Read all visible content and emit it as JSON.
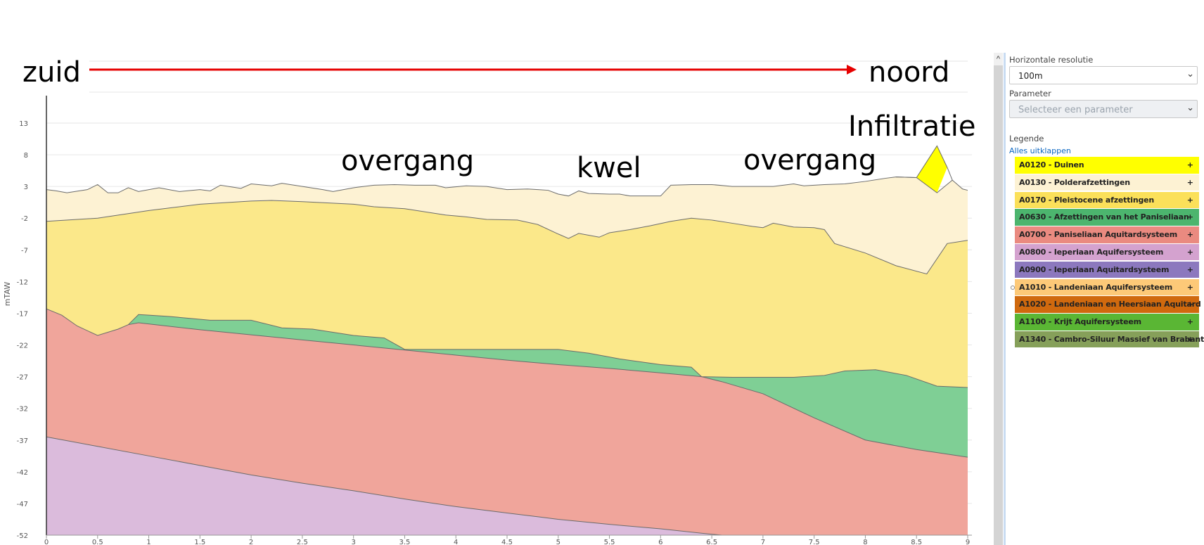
{
  "annotations": {
    "south": "zuid",
    "north": "noord",
    "infiltration": "Infiltratie",
    "transition_left": "overgang",
    "seepage": "kwel",
    "transition_right": "overgang"
  },
  "panel": {
    "resolution_label": "Horizontale resolutie",
    "resolution_value": "100m",
    "parameter_label": "Parameter",
    "parameter_placeholder": "Selecteer een parameter",
    "legend_label": "Legende",
    "expand_all": "Alles uitklappen",
    "legend_items": [
      {
        "label": "A0120 - Duinen",
        "color": "#ffff00"
      },
      {
        "label": "A0130 - Polderafzettingen",
        "color": "#fdf2d3"
      },
      {
        "label": "A0170 - Pleistocene afzettingen",
        "color": "#fbe05a"
      },
      {
        "label": "A0630 - Afzettingen van het Paniseliaan",
        "color": "#4cb56e"
      },
      {
        "label": "A0700 - Paniseliaan Aquitardsysteem",
        "color": "#ea8a80"
      },
      {
        "label": "A0800 - Ieperiaan Aquifersysteem",
        "color": "#d4a2cf"
      },
      {
        "label": "A0900 - Ieperiaan Aquitardsysteem",
        "color": "#8c78be"
      },
      {
        "label": "A1010 - Landeniaan Aquifersysteem",
        "color": "#fdc978"
      },
      {
        "label": "A1020 - Landeniaan en Heersiaan Aquitard",
        "color": "#d0690e"
      },
      {
        "label": "A1100 - Krijt Aquifersysteem",
        "color": "#5ab634"
      },
      {
        "label": "A1340 - Cambro-Siluur Massief van Brabant",
        "color": "#86a05a"
      }
    ],
    "plus": "+"
  },
  "scroll_up": "^",
  "chart_data": {
    "type": "area",
    "ylabel": "mTAW",
    "xlim": [
      0,
      9
    ],
    "ylim": [
      -52,
      13
    ],
    "xticks": [
      0,
      0.5,
      1,
      1.5,
      2,
      2.5,
      3,
      3.5,
      4,
      4.5,
      5,
      5.5,
      6,
      6.5,
      7,
      7.5,
      8,
      8.5,
      9
    ],
    "yticks": [
      13,
      8,
      3,
      -2,
      -7,
      -12,
      -17,
      -22,
      -27,
      -32,
      -37,
      -42,
      -47,
      -52
    ],
    "grid": true,
    "layers": [
      {
        "name": "A0120 - Duinen",
        "color": "#ffff00",
        "top": [
          [
            8.3,
            4.5
          ],
          [
            8.5,
            4.4
          ],
          [
            8.7,
            9.4
          ],
          [
            8.8,
            6.0
          ],
          [
            8.85,
            4.0
          ]
        ],
        "bottom": [
          [
            8.3,
            4.5
          ],
          [
            8.5,
            4.0
          ],
          [
            8.7,
            2.0
          ],
          [
            8.8,
            6.0
          ],
          [
            8.85,
            4.0
          ]
        ]
      },
      {
        "name": "A0130 - Polderafzettingen",
        "color": "#fdf2d3",
        "top": [
          [
            0,
            2.5
          ],
          [
            0.1,
            2.3
          ],
          [
            0.2,
            2.0
          ],
          [
            0.4,
            2.5
          ],
          [
            0.5,
            3.3
          ],
          [
            0.6,
            2.0
          ],
          [
            0.7,
            2.0
          ],
          [
            0.8,
            2.8
          ],
          [
            0.9,
            2.2
          ],
          [
            1.1,
            2.8
          ],
          [
            1.3,
            2.2
          ],
          [
            1.5,
            2.5
          ],
          [
            1.6,
            2.3
          ],
          [
            1.7,
            3.2
          ],
          [
            1.9,
            2.7
          ],
          [
            2.0,
            3.4
          ],
          [
            2.2,
            3.1
          ],
          [
            2.3,
            3.5
          ],
          [
            2.5,
            3.0
          ],
          [
            2.7,
            2.5
          ],
          [
            2.8,
            2.2
          ],
          [
            3.0,
            2.8
          ],
          [
            3.2,
            3.2
          ],
          [
            3.4,
            3.3
          ],
          [
            3.6,
            3.2
          ],
          [
            3.8,
            3.2
          ],
          [
            3.9,
            2.8
          ],
          [
            4.1,
            3.1
          ],
          [
            4.3,
            3.0
          ],
          [
            4.5,
            2.5
          ],
          [
            4.7,
            2.6
          ],
          [
            4.8,
            2.5
          ],
          [
            4.9,
            2.4
          ],
          [
            5.0,
            1.8
          ],
          [
            5.1,
            1.5
          ],
          [
            5.2,
            2.3
          ],
          [
            5.3,
            1.9
          ],
          [
            5.5,
            1.8
          ],
          [
            5.6,
            1.8
          ],
          [
            5.7,
            1.5
          ],
          [
            5.8,
            1.5
          ],
          [
            6.0,
            1.5
          ],
          [
            6.1,
            3.2
          ],
          [
            6.3,
            3.3
          ],
          [
            6.5,
            3.3
          ],
          [
            6.7,
            3.0
          ],
          [
            6.9,
            3.0
          ],
          [
            7.1,
            3.0
          ],
          [
            7.3,
            3.4
          ],
          [
            7.4,
            3.1
          ],
          [
            7.6,
            3.3
          ],
          [
            7.8,
            3.4
          ],
          [
            8.0,
            3.8
          ],
          [
            8.2,
            4.3
          ],
          [
            8.3,
            4.5
          ],
          [
            8.5,
            4.4
          ],
          [
            8.7,
            2.0
          ],
          [
            8.85,
            4.0
          ],
          [
            8.95,
            2.6
          ],
          [
            9.0,
            2.4
          ]
        ],
        "bottom": [
          [
            0,
            -2.5
          ],
          [
            0.5,
            -2.0
          ],
          [
            1.0,
            -0.8
          ],
          [
            1.5,
            0.2
          ],
          [
            2.0,
            0.7
          ],
          [
            2.2,
            0.8
          ],
          [
            2.5,
            0.6
          ],
          [
            3.0,
            0.2
          ],
          [
            3.2,
            -0.2
          ],
          [
            3.5,
            -0.5
          ],
          [
            3.9,
            -1.5
          ],
          [
            4.1,
            -1.8
          ],
          [
            4.3,
            -2.2
          ],
          [
            4.6,
            -2.3
          ],
          [
            4.8,
            -3.0
          ],
          [
            5.0,
            -4.5
          ],
          [
            5.1,
            -5.2
          ],
          [
            5.2,
            -4.4
          ],
          [
            5.4,
            -5.0
          ],
          [
            5.5,
            -4.3
          ],
          [
            5.7,
            -3.8
          ],
          [
            5.9,
            -3.2
          ],
          [
            6.1,
            -2.5
          ],
          [
            6.3,
            -2.0
          ],
          [
            6.5,
            -2.3
          ],
          [
            6.7,
            -2.8
          ],
          [
            6.9,
            -3.3
          ],
          [
            7.0,
            -3.5
          ],
          [
            7.1,
            -2.8
          ],
          [
            7.3,
            -3.4
          ],
          [
            7.5,
            -3.5
          ],
          [
            7.6,
            -3.8
          ],
          [
            7.7,
            -6.0
          ],
          [
            8.0,
            -7.5
          ],
          [
            8.3,
            -9.5
          ],
          [
            8.6,
            -10.8
          ],
          [
            8.8,
            -6.0
          ],
          [
            9.0,
            -5.5
          ]
        ]
      },
      {
        "name": "A0170 - Pleistocene afzettingen",
        "color": "#fbe88a",
        "top": [
          [
            0,
            -2.5
          ],
          [
            0.5,
            -2.0
          ],
          [
            1.0,
            -0.8
          ],
          [
            1.5,
            0.2
          ],
          [
            2.0,
            0.7
          ],
          [
            2.2,
            0.8
          ],
          [
            2.5,
            0.6
          ],
          [
            3.0,
            0.2
          ],
          [
            3.2,
            -0.2
          ],
          [
            3.5,
            -0.5
          ],
          [
            3.9,
            -1.5
          ],
          [
            4.1,
            -1.8
          ],
          [
            4.3,
            -2.2
          ],
          [
            4.6,
            -2.3
          ],
          [
            4.8,
            -3.0
          ],
          [
            5.0,
            -4.5
          ],
          [
            5.1,
            -5.2
          ],
          [
            5.2,
            -4.4
          ],
          [
            5.4,
            -5.0
          ],
          [
            5.5,
            -4.3
          ],
          [
            5.7,
            -3.8
          ],
          [
            5.9,
            -3.2
          ],
          [
            6.1,
            -2.5
          ],
          [
            6.3,
            -2.0
          ],
          [
            6.5,
            -2.3
          ],
          [
            6.7,
            -2.8
          ],
          [
            6.9,
            -3.3
          ],
          [
            7.0,
            -3.5
          ],
          [
            7.1,
            -2.8
          ],
          [
            7.3,
            -3.4
          ],
          [
            7.5,
            -3.5
          ],
          [
            7.6,
            -3.8
          ],
          [
            7.7,
            -6.0
          ],
          [
            8.0,
            -7.5
          ],
          [
            8.3,
            -9.5
          ],
          [
            8.6,
            -10.8
          ],
          [
            8.8,
            -6.0
          ],
          [
            9.0,
            -5.5
          ]
        ],
        "bottom": [
          [
            0,
            -16.3
          ],
          [
            0.15,
            -17.3
          ],
          [
            0.3,
            -19.0
          ],
          [
            0.5,
            -20.5
          ],
          [
            0.7,
            -19.5
          ],
          [
            0.8,
            -18.8
          ],
          [
            0.9,
            -17.2
          ],
          [
            1.0,
            -17.3
          ],
          [
            1.2,
            -17.5
          ],
          [
            1.6,
            -18.1
          ],
          [
            2.0,
            -18.1
          ],
          [
            2.3,
            -19.3
          ],
          [
            2.6,
            -19.5
          ],
          [
            3.0,
            -20.5
          ],
          [
            3.3,
            -20.9
          ],
          [
            3.5,
            -22.7
          ],
          [
            4.0,
            -22.7
          ],
          [
            4.5,
            -22.7
          ],
          [
            5.0,
            -22.7
          ],
          [
            5.3,
            -23.3
          ],
          [
            5.6,
            -24.2
          ],
          [
            6.0,
            -25.1
          ],
          [
            6.3,
            -25.5
          ],
          [
            6.4,
            -27.0
          ],
          [
            6.7,
            -27.1
          ],
          [
            7.0,
            -27.1
          ],
          [
            7.3,
            -27.1
          ],
          [
            7.6,
            -26.8
          ],
          [
            7.8,
            -26.1
          ],
          [
            8.1,
            -25.9
          ],
          [
            8.4,
            -26.8
          ],
          [
            8.7,
            -28.5
          ],
          [
            9.0,
            -28.7
          ]
        ]
      },
      {
        "name": "A0630 - Afzettingen van het Paniseliaan",
        "color": "#7fcf95",
        "top": [
          [
            0.8,
            -18.8
          ],
          [
            0.9,
            -17.2
          ],
          [
            1.0,
            -17.3
          ],
          [
            1.2,
            -17.5
          ],
          [
            1.6,
            -18.1
          ],
          [
            2.0,
            -18.1
          ],
          [
            2.3,
            -19.3
          ],
          [
            2.6,
            -19.5
          ],
          [
            3.0,
            -20.5
          ],
          [
            3.3,
            -20.9
          ],
          [
            3.5,
            -22.7
          ],
          [
            4.0,
            -22.7
          ],
          [
            4.5,
            -22.7
          ],
          [
            5.0,
            -22.7
          ],
          [
            5.3,
            -23.3
          ],
          [
            5.6,
            -24.2
          ],
          [
            6.0,
            -25.1
          ],
          [
            6.3,
            -25.5
          ],
          [
            6.4,
            -27.0
          ],
          [
            6.7,
            -27.1
          ],
          [
            7.0,
            -27.1
          ],
          [
            7.3,
            -27.1
          ],
          [
            7.6,
            -26.8
          ],
          [
            7.8,
            -26.1
          ],
          [
            8.1,
            -25.9
          ],
          [
            8.4,
            -26.8
          ],
          [
            8.7,
            -28.5
          ],
          [
            9.0,
            -28.7
          ]
        ],
        "bottom": [
          [
            0.8,
            -18.8
          ],
          [
            0.9,
            -18.5
          ],
          [
            1.5,
            -19.6
          ],
          [
            2.0,
            -20.4
          ],
          [
            2.5,
            -21.2
          ],
          [
            3.0,
            -22.0
          ],
          [
            3.5,
            -22.8
          ],
          [
            4.0,
            -23.6
          ],
          [
            4.5,
            -24.4
          ],
          [
            5.0,
            -25.1
          ],
          [
            5.5,
            -25.7
          ],
          [
            6.0,
            -26.4
          ],
          [
            6.4,
            -27.0
          ],
          [
            6.6,
            -27.8
          ],
          [
            7.0,
            -29.7
          ],
          [
            7.5,
            -33.5
          ],
          [
            8.0,
            -37.0
          ],
          [
            8.5,
            -38.5
          ],
          [
            9.0,
            -39.7
          ]
        ]
      },
      {
        "name": "A0700 - Paniseliaan Aquitardsysteem",
        "color": "#f0a59b",
        "top": [
          [
            0,
            -16.3
          ],
          [
            0.15,
            -17.3
          ],
          [
            0.3,
            -19.0
          ],
          [
            0.5,
            -20.5
          ],
          [
            0.7,
            -19.5
          ],
          [
            0.8,
            -18.8
          ],
          [
            0.9,
            -18.5
          ],
          [
            1.5,
            -19.6
          ],
          [
            2.0,
            -20.4
          ],
          [
            2.5,
            -21.2
          ],
          [
            3.0,
            -22.0
          ],
          [
            3.5,
            -22.8
          ],
          [
            4.0,
            -23.6
          ],
          [
            4.5,
            -24.4
          ],
          [
            5.0,
            -25.1
          ],
          [
            5.5,
            -25.7
          ],
          [
            6.0,
            -26.4
          ],
          [
            6.4,
            -27.0
          ],
          [
            6.6,
            -27.8
          ],
          [
            7.0,
            -29.7
          ],
          [
            7.5,
            -33.5
          ],
          [
            8.0,
            -37.0
          ],
          [
            8.5,
            -38.5
          ],
          [
            9.0,
            -39.7
          ]
        ],
        "bottom": [
          [
            0,
            -36.5
          ],
          [
            0.5,
            -38.0
          ],
          [
            1.0,
            -39.5
          ],
          [
            1.5,
            -41.0
          ],
          [
            2.0,
            -42.5
          ],
          [
            2.5,
            -43.8
          ],
          [
            3.0,
            -45.0
          ],
          [
            3.5,
            -46.3
          ],
          [
            4.0,
            -47.5
          ],
          [
            4.5,
            -48.5
          ],
          [
            5.0,
            -49.5
          ],
          [
            5.5,
            -50.3
          ],
          [
            6.0,
            -51.0
          ],
          [
            6.4,
            -51.7
          ],
          [
            6.6,
            -52.0
          ],
          [
            9.0,
            -52.0
          ]
        ]
      },
      {
        "name": "A0800 - Ieperiaan Aquifersysteem",
        "color": "#dbbbdc",
        "top": [
          [
            0,
            -36.5
          ],
          [
            0.5,
            -38.0
          ],
          [
            1.0,
            -39.5
          ],
          [
            1.5,
            -41.0
          ],
          [
            2.0,
            -42.5
          ],
          [
            2.5,
            -43.8
          ],
          [
            3.0,
            -45.0
          ],
          [
            3.5,
            -46.3
          ],
          [
            4.0,
            -47.5
          ],
          [
            4.5,
            -48.5
          ],
          [
            5.0,
            -49.5
          ],
          [
            5.5,
            -50.3
          ],
          [
            6.0,
            -51.0
          ],
          [
            6.4,
            -51.7
          ],
          [
            6.6,
            -52.0
          ]
        ],
        "bottom": [
          [
            0,
            -52.0
          ],
          [
            6.6,
            -52.0
          ]
        ]
      }
    ]
  }
}
